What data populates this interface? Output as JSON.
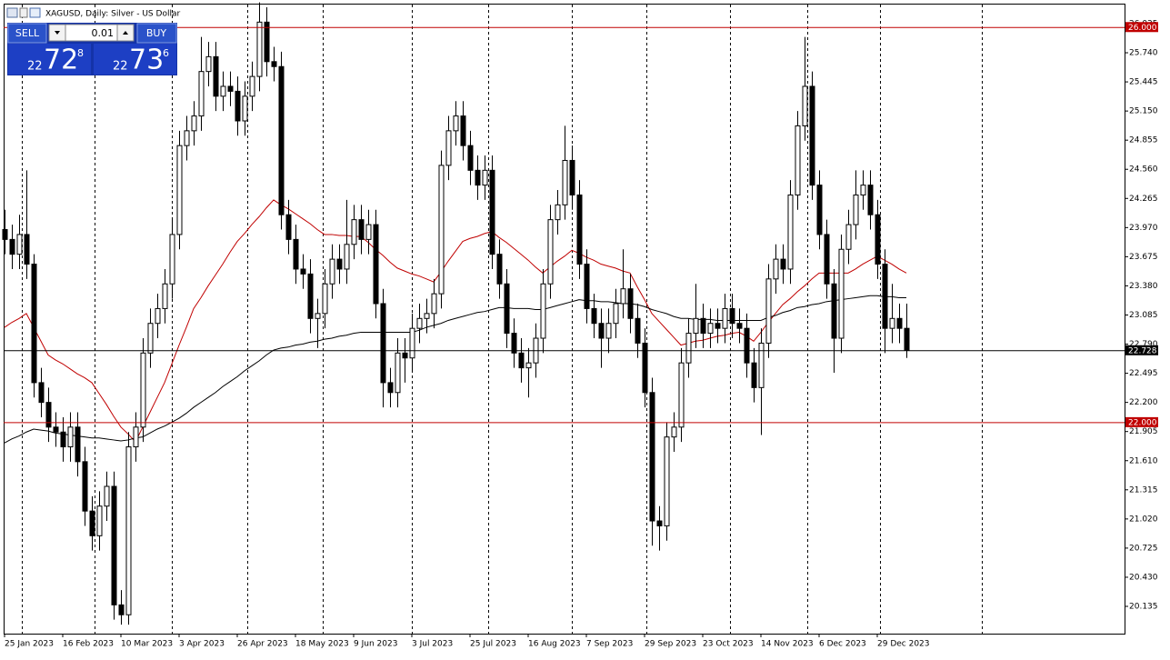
{
  "chart_data": {
    "type": "candlestick",
    "title": "XAGUSD, Daily:  Silver - US Dollar",
    "trade_panel": {
      "sell": "SELL",
      "buy": "BUY",
      "lot": "0.01",
      "bid": {
        "prefix": "22",
        "big": "72",
        "small": "8"
      },
      "ask": {
        "prefix": "22",
        "big": "73",
        "small": "6"
      }
    },
    "up_color": "#ffffff",
    "down_color": "#000000",
    "wick_color": "#000000",
    "categories": [
      "25 Jan 2023",
      null,
      null,
      null,
      null,
      null,
      null,
      null,
      "16 Feb 2023",
      null,
      null,
      null,
      null,
      null,
      null,
      null,
      "10 Mar 2023",
      null,
      null,
      null,
      null,
      null,
      null,
      null,
      "3 Apr 2023",
      null,
      null,
      null,
      null,
      null,
      null,
      null,
      "26 Apr 2023",
      null,
      null,
      null,
      null,
      null,
      null,
      null,
      "18 May 2023",
      null,
      null,
      null,
      null,
      null,
      null,
      null,
      "9 Jun 2023",
      null,
      null,
      null,
      null,
      null,
      null,
      null,
      "3 Jul 2023",
      null,
      null,
      null,
      null,
      null,
      null,
      null,
      "25 Jul 2023",
      null,
      null,
      null,
      null,
      null,
      null,
      null,
      "16 Aug 2023",
      null,
      null,
      null,
      null,
      null,
      null,
      null,
      "7 Sep 2023",
      null,
      null,
      null,
      null,
      null,
      null,
      null,
      "29 Sep 2023",
      null,
      null,
      null,
      null,
      null,
      null,
      null,
      "23 Oct 2023",
      null,
      null,
      null,
      null,
      null,
      null,
      null,
      "14 Nov 2023",
      null,
      null,
      null,
      null,
      null,
      null,
      null,
      "6 Dec 2023",
      null,
      null,
      null,
      null,
      null,
      null,
      null,
      "29 Dec 2023",
      null,
      null,
      null,
      null
    ],
    "open": [
      23.95,
      23.85,
      23.7,
      23.9,
      23.6,
      22.4,
      22.2,
      21.95,
      21.9,
      21.75,
      21.95,
      21.6,
      21.1,
      20.85,
      21.15,
      21.35,
      20.15,
      20.05,
      21.75,
      21.95,
      22.7,
      23.0,
      23.15,
      23.4,
      23.9,
      24.8,
      24.95,
      25.1,
      25.55,
      25.7,
      25.3,
      25.4,
      25.35,
      25.05,
      25.3,
      25.5,
      26.05,
      25.65,
      25.6,
      24.1,
      23.85,
      23.55,
      23.5,
      23.05,
      23.1,
      23.4,
      23.65,
      23.55,
      23.8,
      24.05,
      23.85,
      24.0,
      23.2,
      22.4,
      22.3,
      22.7,
      22.65,
      22.95,
      23.05,
      23.1,
      23.3,
      24.6,
      24.95,
      25.1,
      24.8,
      24.55,
      24.4,
      24.55,
      23.7,
      23.4,
      22.9,
      22.7,
      22.55,
      22.6,
      22.85,
      23.4,
      24.05,
      24.2,
      24.65,
      24.3,
      23.6,
      23.15,
      23.0,
      22.85,
      23.0,
      23.2,
      23.35,
      23.05,
      22.8,
      22.3,
      21.0,
      20.95,
      21.85,
      21.95,
      22.6,
      22.9,
      23.05,
      22.9,
      23.0,
      22.95,
      23.15,
      23.0,
      22.95,
      22.6,
      22.35,
      22.8,
      23.45,
      23.65,
      23.55,
      24.3,
      25.0,
      25.4,
      24.4,
      23.9,
      23.4,
      22.85,
      23.75,
      24.0,
      24.3,
      24.4,
      24.1,
      23.6,
      22.95,
      23.05,
      22.95
    ],
    "high": [
      24.15,
      24.0,
      24.1,
      24.55,
      23.7,
      22.55,
      22.35,
      22.1,
      22.05,
      22.1,
      22.1,
      21.75,
      21.25,
      21.3,
      21.5,
      21.5,
      20.3,
      21.9,
      22.1,
      22.85,
      23.15,
      23.3,
      23.55,
      24.05,
      24.95,
      25.1,
      25.25,
      25.9,
      25.85,
      25.85,
      25.55,
      25.55,
      25.5,
      25.45,
      25.65,
      26.25,
      26.2,
      25.8,
      25.75,
      24.25,
      24.0,
      23.7,
      23.65,
      23.25,
      23.55,
      23.8,
      23.8,
      24.25,
      24.2,
      24.2,
      24.15,
      24.15,
      23.35,
      22.55,
      22.85,
      22.85,
      23.1,
      23.2,
      23.25,
      23.45,
      24.75,
      25.1,
      25.25,
      25.25,
      24.95,
      24.7,
      24.7,
      24.7,
      23.85,
      23.55,
      23.05,
      22.85,
      22.75,
      23.0,
      23.55,
      24.2,
      24.35,
      25.0,
      24.8,
      24.45,
      23.75,
      23.3,
      23.15,
      23.15,
      23.35,
      23.75,
      23.5,
      23.2,
      22.95,
      22.45,
      21.15,
      22.0,
      22.1,
      22.75,
      23.05,
      23.4,
      23.2,
      23.15,
      23.15,
      23.3,
      23.3,
      23.15,
      23.1,
      22.75,
      22.95,
      23.6,
      23.8,
      23.8,
      24.45,
      25.15,
      25.9,
      25.55,
      24.55,
      24.05,
      23.55,
      23.9,
      24.15,
      24.55,
      24.55,
      24.55,
      24.25,
      23.75,
      23.4,
      23.2,
      23.2
    ],
    "low": [
      23.7,
      23.55,
      23.55,
      23.45,
      22.25,
      22.05,
      21.8,
      21.75,
      21.6,
      21.6,
      21.45,
      20.95,
      20.7,
      20.7,
      21.0,
      20.0,
      19.95,
      19.95,
      21.6,
      21.8,
      22.55,
      22.85,
      23.0,
      23.25,
      23.75,
      24.65,
      24.8,
      24.95,
      25.4,
      25.15,
      25.15,
      25.2,
      24.9,
      24.9,
      25.15,
      25.35,
      25.5,
      25.45,
      23.95,
      23.7,
      23.4,
      23.35,
      22.9,
      22.75,
      22.95,
      23.25,
      23.4,
      23.4,
      23.65,
      23.7,
      23.7,
      23.05,
      22.15,
      22.15,
      22.15,
      22.4,
      22.5,
      22.8,
      22.9,
      22.95,
      23.15,
      24.45,
      24.8,
      24.65,
      24.4,
      24.25,
      24.25,
      23.55,
      23.25,
      22.75,
      22.55,
      22.4,
      22.25,
      22.45,
      22.7,
      23.25,
      23.9,
      24.05,
      24.15,
      23.45,
      23.0,
      22.85,
      22.55,
      22.7,
      22.85,
      23.05,
      22.9,
      22.65,
      22.15,
      20.75,
      20.7,
      20.8,
      21.7,
      21.8,
      22.45,
      22.75,
      22.75,
      22.75,
      22.8,
      22.8,
      22.85,
      22.8,
      22.45,
      22.2,
      21.87,
      22.65,
      23.3,
      23.4,
      23.4,
      24.15,
      24.85,
      24.25,
      23.75,
      23.25,
      22.5,
      22.7,
      23.6,
      23.85,
      24.15,
      23.95,
      23.45,
      22.7,
      22.8,
      22.8,
      22.65
    ],
    "close": [
      23.85,
      23.7,
      23.9,
      23.6,
      22.4,
      22.2,
      21.95,
      21.9,
      21.75,
      21.95,
      21.6,
      21.1,
      20.85,
      21.15,
      21.35,
      20.15,
      20.05,
      21.75,
      21.95,
      22.7,
      23.0,
      23.15,
      23.4,
      23.9,
      24.8,
      24.95,
      25.1,
      25.55,
      25.7,
      25.3,
      25.4,
      25.35,
      25.05,
      25.3,
      25.5,
      26.05,
      25.65,
      25.6,
      24.1,
      23.85,
      23.55,
      23.5,
      23.05,
      23.1,
      23.4,
      23.65,
      23.55,
      23.8,
      24.05,
      23.85,
      24.0,
      23.2,
      22.4,
      22.3,
      22.7,
      22.65,
      22.95,
      23.05,
      23.1,
      23.3,
      24.6,
      24.95,
      25.1,
      24.8,
      24.55,
      24.4,
      24.55,
      23.7,
      23.4,
      22.9,
      22.7,
      22.55,
      22.6,
      22.85,
      23.4,
      24.05,
      24.2,
      24.65,
      24.3,
      23.6,
      23.15,
      23.0,
      22.85,
      23.0,
      23.2,
      23.35,
      23.05,
      22.8,
      22.3,
      21.0,
      20.95,
      21.85,
      21.95,
      22.6,
      22.9,
      23.05,
      22.9,
      23.0,
      22.95,
      23.15,
      23.0,
      22.95,
      22.6,
      22.35,
      22.8,
      23.45,
      23.65,
      23.55,
      24.3,
      25.0,
      25.4,
      24.4,
      23.9,
      23.4,
      22.85,
      23.75,
      24.0,
      24.3,
      24.4,
      24.1,
      23.6,
      22.95,
      23.05,
      22.95,
      22.73
    ],
    "series": [
      {
        "color": "#c00000",
        "values": [
          22.96,
          23.01,
          23.05,
          23.1,
          22.96,
          22.82,
          22.68,
          22.63,
          22.59,
          22.54,
          22.49,
          22.45,
          22.4,
          22.29,
          22.18,
          22.06,
          21.95,
          21.88,
          21.8,
          21.95,
          22.1,
          22.25,
          22.4,
          22.59,
          22.78,
          22.96,
          23.15,
          23.26,
          23.38,
          23.49,
          23.6,
          23.72,
          23.83,
          23.91,
          24.0,
          24.08,
          24.17,
          24.25,
          24.2,
          24.16,
          24.11,
          24.06,
          24.01,
          23.95,
          23.9,
          23.9,
          23.89,
          23.89,
          23.88,
          23.88,
          23.82,
          23.75,
          23.69,
          23.62,
          23.56,
          23.53,
          23.5,
          23.48,
          23.45,
          23.42,
          23.52,
          23.63,
          23.73,
          23.83,
          23.86,
          23.88,
          23.91,
          23.93,
          23.87,
          23.82,
          23.76,
          23.7,
          23.64,
          23.57,
          23.51,
          23.57,
          23.63,
          23.68,
          23.74,
          23.71,
          23.67,
          23.64,
          23.6,
          23.58,
          23.56,
          23.53,
          23.51,
          23.37,
          23.24,
          23.1,
          23.02,
          22.94,
          22.86,
          22.78,
          22.8,
          22.82,
          22.83,
          22.85,
          22.87,
          22.88,
          22.9,
          22.91,
          22.87,
          22.82,
          22.91,
          23.01,
          23.1,
          23.19,
          23.25,
          23.32,
          23.38,
          23.45,
          23.51,
          23.51,
          23.51,
          23.51,
          23.51,
          23.55,
          23.6,
          23.64,
          23.68,
          23.64,
          23.6,
          23.55,
          23.51
        ]
      },
      {
        "color": "#000000",
        "values": [
          21.79,
          21.83,
          21.86,
          21.9,
          21.93,
          21.92,
          21.91,
          21.89,
          21.88,
          21.87,
          21.86,
          21.85,
          21.84,
          21.84,
          21.83,
          21.82,
          21.81,
          21.82,
          21.84,
          21.85,
          21.89,
          21.93,
          21.96,
          22.0,
          22.04,
          22.09,
          22.15,
          22.2,
          22.25,
          22.3,
          22.36,
          22.41,
          22.46,
          22.52,
          22.57,
          22.62,
          22.68,
          22.73,
          22.75,
          22.76,
          22.78,
          22.79,
          22.81,
          22.82,
          22.84,
          22.85,
          22.87,
          22.88,
          22.9,
          22.91,
          22.91,
          22.91,
          22.91,
          22.91,
          22.91,
          22.91,
          22.91,
          22.93,
          22.96,
          22.98,
          23.0,
          23.03,
          23.05,
          23.07,
          23.09,
          23.11,
          23.12,
          23.14,
          23.16,
          23.16,
          23.15,
          23.15,
          23.15,
          23.14,
          23.14,
          23.16,
          23.18,
          23.2,
          23.22,
          23.24,
          23.23,
          23.23,
          23.22,
          23.22,
          23.21,
          23.2,
          23.2,
          23.19,
          23.17,
          23.14,
          23.12,
          23.1,
          23.07,
          23.05,
          23.05,
          23.04,
          23.04,
          23.04,
          23.03,
          23.03,
          23.03,
          23.03,
          23.03,
          23.03,
          23.03,
          23.06,
          23.08,
          23.11,
          23.13,
          23.16,
          23.17,
          23.19,
          23.2,
          23.22,
          23.23,
          23.24,
          23.25,
          23.26,
          23.27,
          23.28,
          23.28,
          23.27,
          23.27,
          23.26,
          23.26
        ]
      }
    ],
    "levels": [
      {
        "value": 26,
        "label": "26.000",
        "color": "#c00000"
      },
      {
        "value": 22,
        "label": "22.000",
        "color": "#c00000"
      },
      {
        "value": 22.728,
        "label": "22.728",
        "color": "#000000"
      }
    ],
    "ylim": [
      19.859,
      26.228
    ],
    "yticks": [
      {
        "value": 26.035,
        "label": "26.035"
      },
      {
        "value": 25.74,
        "label": "25.740"
      },
      {
        "value": 25.445,
        "label": "25.445"
      },
      {
        "value": 25.15,
        "label": "25.150"
      },
      {
        "value": 24.855,
        "label": "24.855"
      },
      {
        "value": 24.56,
        "label": "24.560"
      },
      {
        "value": 24.265,
        "label": "24.265"
      },
      {
        "value": 23.97,
        "label": "23.970"
      },
      {
        "value": 23.675,
        "label": "23.675"
      },
      {
        "value": 23.38,
        "label": "23.380"
      },
      {
        "value": 23.085,
        "label": "23.085"
      },
      {
        "value": 22.79,
        "label": "22.790"
      },
      {
        "value": 22.495,
        "label": "22.495"
      },
      {
        "value": 22.2,
        "label": "22.200"
      },
      {
        "value": 21.905,
        "label": "21.905"
      },
      {
        "value": 21.61,
        "label": "21.610"
      },
      {
        "value": 21.315,
        "label": "21.315"
      },
      {
        "value": 21.02,
        "label": "21.020"
      },
      {
        "value": 20.725,
        "label": "20.725"
      },
      {
        "value": 20.43,
        "label": "20.430"
      },
      {
        "value": 20.135,
        "label": "20.135"
      }
    ]
  }
}
